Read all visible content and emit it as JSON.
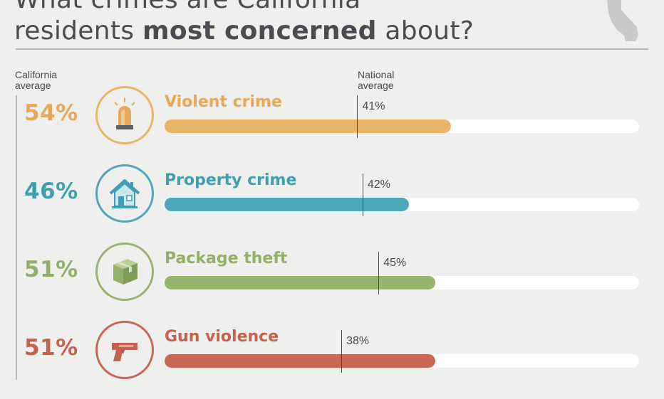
{
  "header": {
    "title_line1": "What crimes are California",
    "title_line2_pre": "residents ",
    "title_line2_bold": "most concerned",
    "title_line2_post": " about?",
    "state_shape_icon": "california-map-icon"
  },
  "labels": {
    "ca_line1": "California",
    "ca_line2": "average",
    "nat_line1": "National",
    "nat_line2": "average"
  },
  "rows": [
    {
      "category": "Violent crime",
      "ca_pct": "54%",
      "nat_pct": "41%",
      "icon": "siren-icon",
      "color": "#e8b565",
      "pct_color": "#e8a85a"
    },
    {
      "category": "Property crime",
      "ca_pct": "46%",
      "nat_pct": "42%",
      "icon": "house-icon",
      "color": "#4aa8b8",
      "pct_color": "#3f9fb2"
    },
    {
      "category": "Package theft",
      "ca_pct": "51%",
      "nat_pct": "45%",
      "icon": "package-icon",
      "color": "#98b46d",
      "pct_color": "#93b06a"
    },
    {
      "category": "Gun violence",
      "ca_pct": "51%",
      "nat_pct": "38%",
      "icon": "gun-icon",
      "color": "#c86754",
      "pct_color": "#c4624f"
    }
  ],
  "chart_data": {
    "type": "bar",
    "categories": [
      "Violent crime",
      "Property crime",
      "Package theft",
      "Gun violence"
    ],
    "series": [
      {
        "name": "California average",
        "values": [
          54,
          46,
          51,
          51
        ]
      },
      {
        "name": "National average",
        "values": [
          41,
          42,
          45,
          38
        ]
      }
    ],
    "ylim": [
      0,
      100
    ],
    "unit": "%"
  }
}
